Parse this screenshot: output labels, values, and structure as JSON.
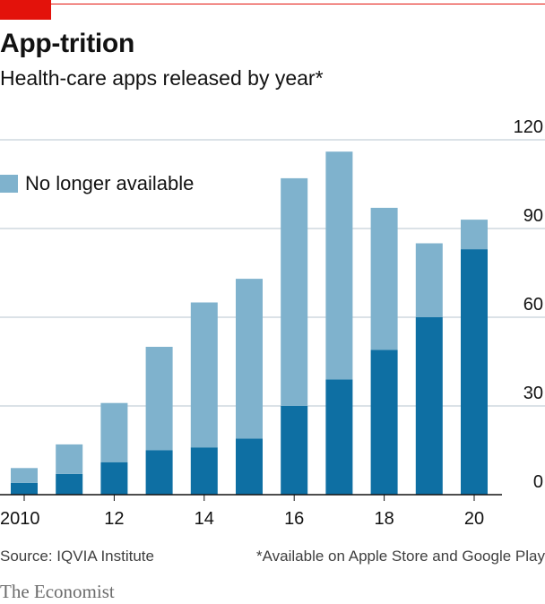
{
  "brand_color": "#e3120b",
  "title": "App-trition",
  "subtitle": "Health-care apps released by year*",
  "chart_data": {
    "type": "bar",
    "stacked": true,
    "categories": [
      "2010",
      "2011",
      "2012",
      "2013",
      "2014",
      "2015",
      "2016",
      "2017",
      "2018",
      "2019",
      "2020"
    ],
    "x_tick_labels": [
      {
        "category": "2010",
        "label": "2010"
      },
      {
        "category": "2012",
        "label": "12"
      },
      {
        "category": "2014",
        "label": "14"
      },
      {
        "category": "2016",
        "label": "16"
      },
      {
        "category": "2018",
        "label": "18"
      },
      {
        "category": "2020",
        "label": "20"
      }
    ],
    "series": [
      {
        "name": "",
        "color": "#0e6fa3",
        "values": [
          4,
          7,
          11,
          15,
          16,
          19,
          30,
          39,
          49,
          60,
          83
        ]
      },
      {
        "name": "No longer available",
        "color": "#7fb2cd",
        "values": [
          5,
          10,
          20,
          35,
          49,
          54,
          77,
          77,
          48,
          25,
          10
        ]
      }
    ],
    "ylim": [
      0,
      120
    ],
    "y_ticks": [
      0,
      30,
      60,
      90,
      120
    ],
    "y_axis_position": "right",
    "grid": true,
    "legend_position": "top-left",
    "xlabel": "",
    "ylabel": ""
  },
  "legend": {
    "label": "No longer available",
    "color": "#7fb2cd"
  },
  "footer": {
    "source": "Source: IQVIA Institute",
    "footnote": "*Available on Apple Store and Google Play"
  },
  "brand": "The Economist"
}
